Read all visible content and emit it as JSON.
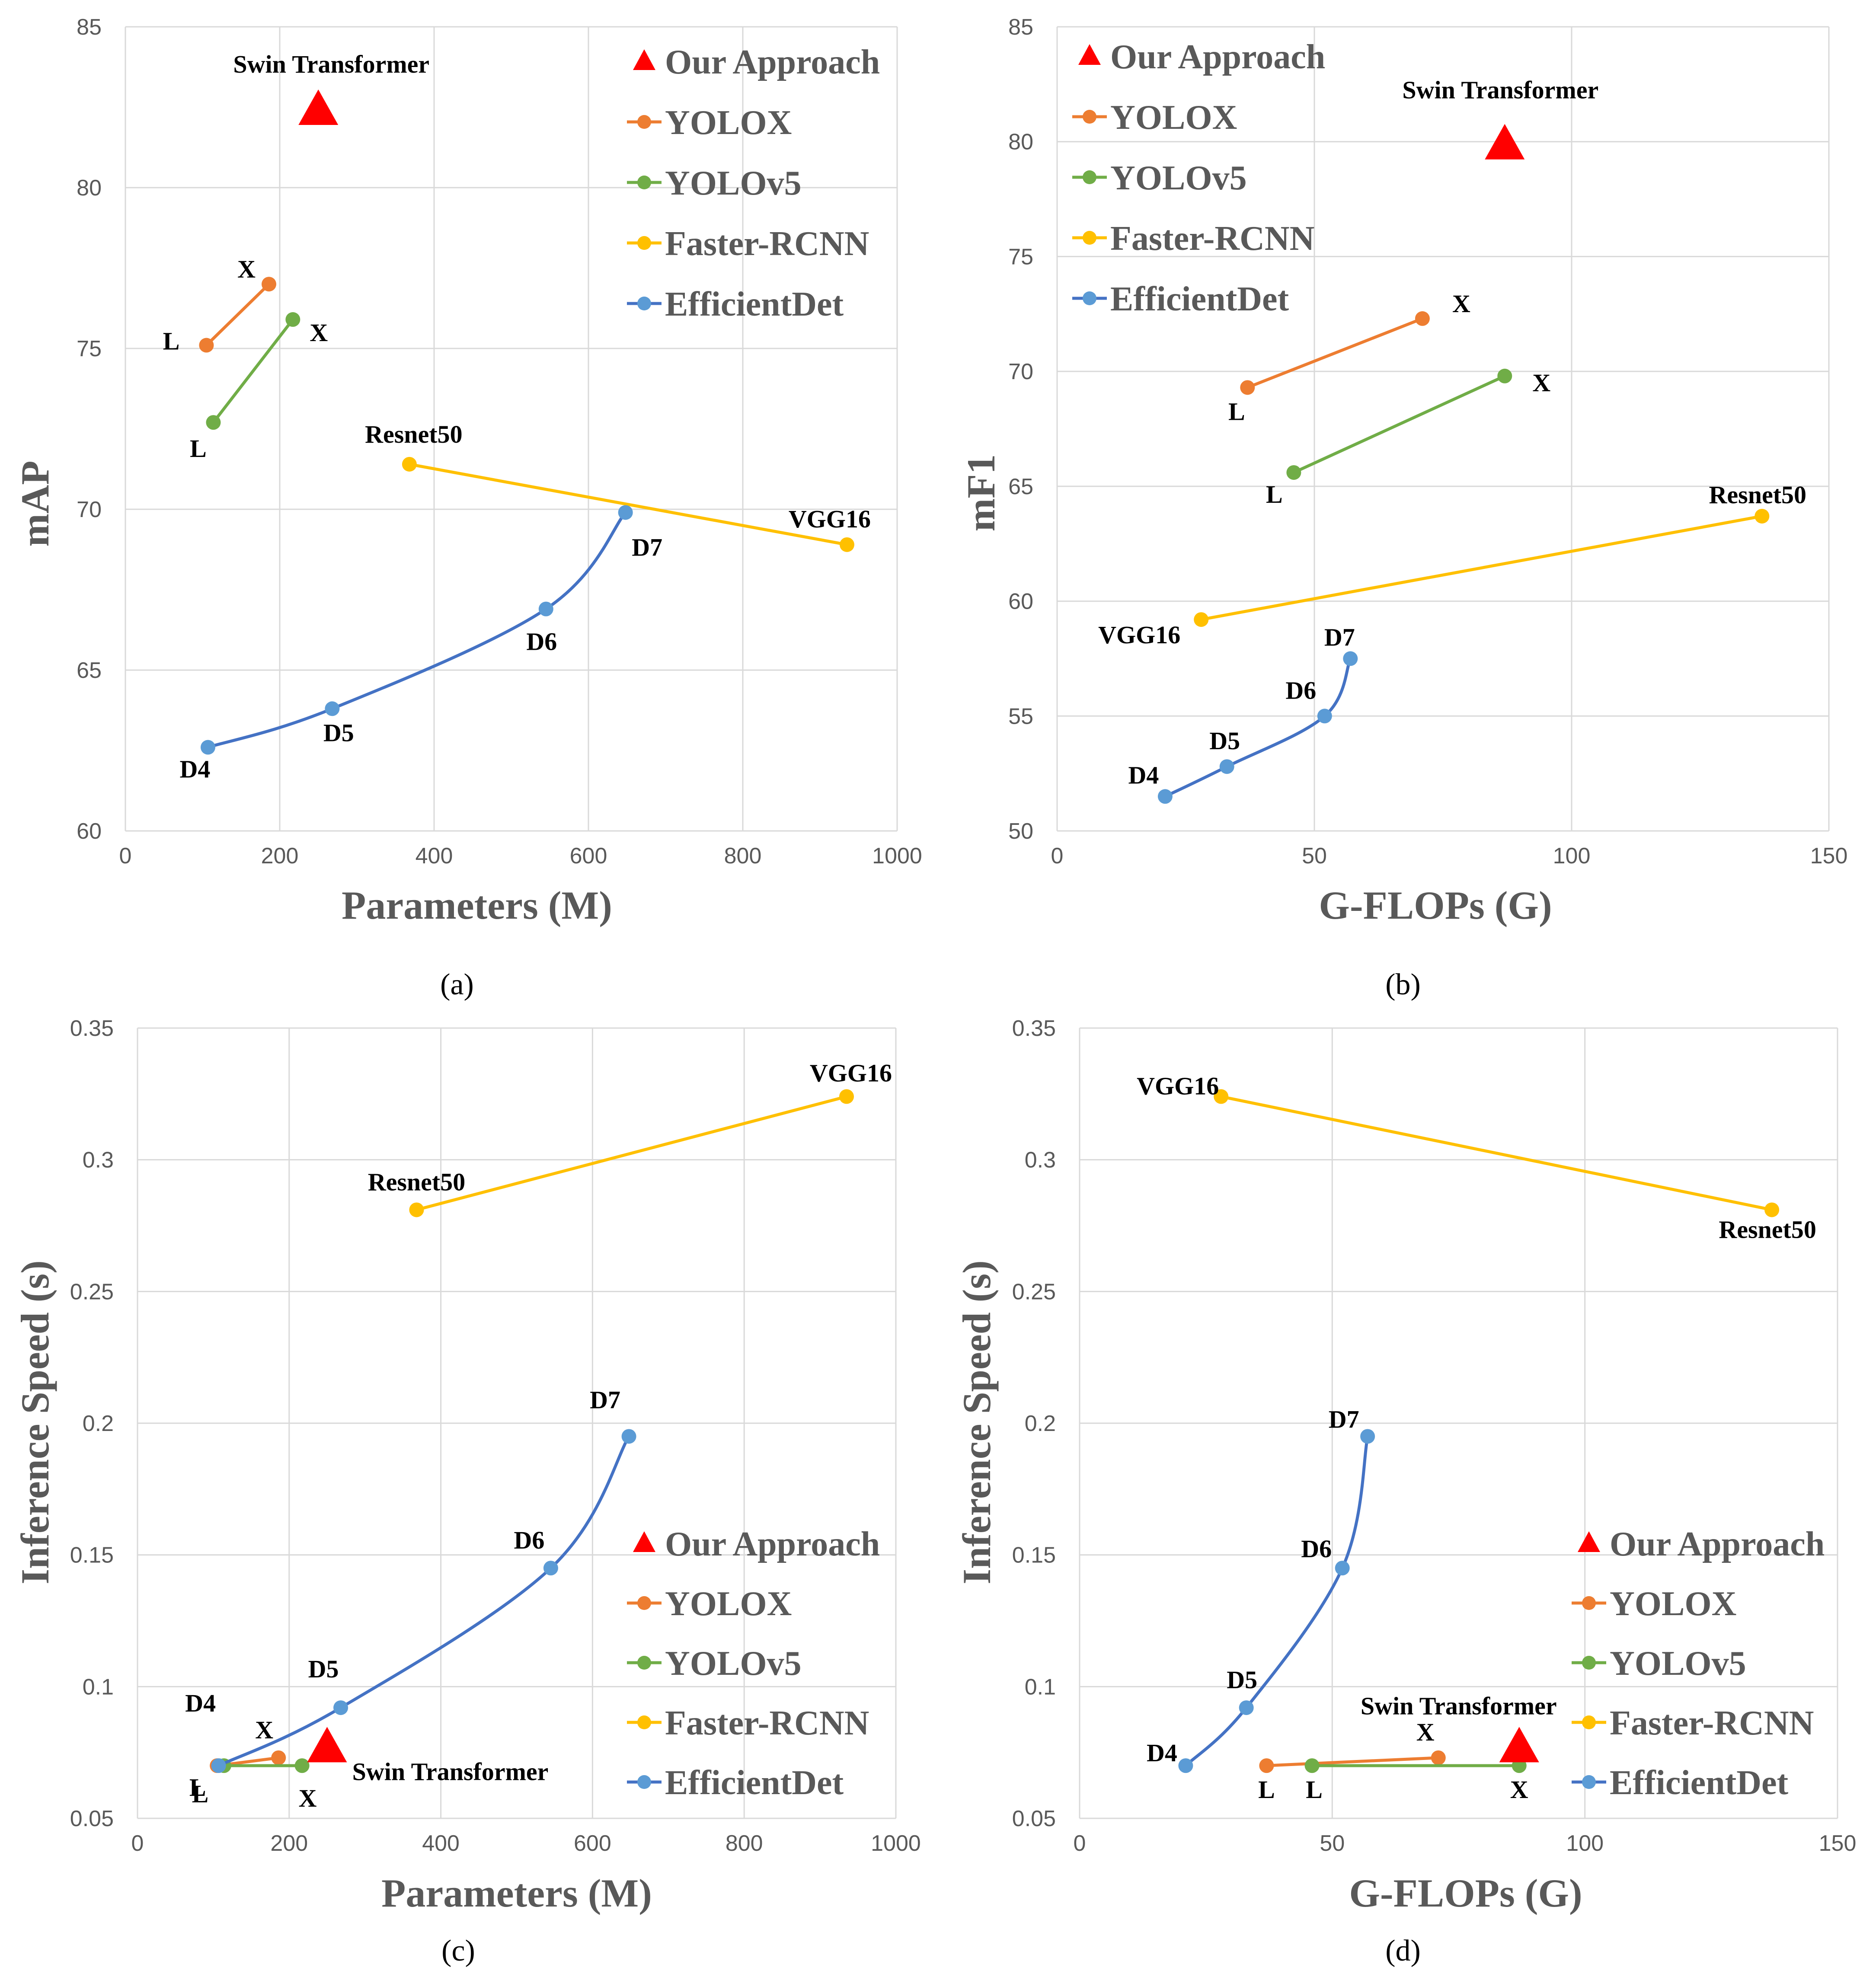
{
  "colors": {
    "our_approach": "#ff0000",
    "yolox": "#ed7d31",
    "yolov5": "#70ad47",
    "faster_rcnn": "#ffc000",
    "efficientdet": "#5b9bd5",
    "efficientdet_line": "#4472c4",
    "grid": "#d9d9d9",
    "axis_text": "#595959"
  },
  "legend": {
    "our_approach": "Our Approach",
    "yolox": "YOLOX",
    "yolov5": "YOLOv5",
    "faster_rcnn": "Faster-RCNN",
    "efficientdet": "EfficientDet"
  },
  "chart_data": [
    {
      "id": "a",
      "panel_label": "(a)",
      "type": "scatter",
      "xlabel": "Parameters (M)",
      "ylabel": "mAP",
      "xlim": [
        0,
        1000
      ],
      "ylim": [
        60,
        85
      ],
      "xticks": [
        "0",
        "200",
        "400",
        "600",
        "800",
        "1000"
      ],
      "yticks": [
        "60",
        "65",
        "70",
        "75",
        "80",
        "85"
      ],
      "legend_position": "top-right",
      "series": [
        {
          "name": "YOLOX",
          "key": "yolox",
          "points": [
            [
              105,
              75.1
            ],
            [
              186,
              77.0
            ]
          ],
          "labels": [
            "L",
            "X"
          ]
        },
        {
          "name": "YOLOv5",
          "key": "yolov5",
          "points": [
            [
              114,
              72.7
            ],
            [
              217,
              75.9
            ]
          ],
          "labels": [
            "L",
            "X"
          ]
        },
        {
          "name": "Faster-RCNN",
          "key": "faster_rcnn",
          "points": [
            [
              368,
              71.4
            ],
            [
              935,
              68.9
            ]
          ],
          "labels": [
            "Resnet50",
            "VGG16"
          ]
        },
        {
          "name": "EfficientDet",
          "key": "efficientdet",
          "points": [
            [
              107,
              62.6
            ],
            [
              268,
              63.8
            ],
            [
              545,
              66.9
            ],
            [
              648,
              69.9
            ]
          ],
          "labels": [
            "D4",
            "D5",
            "D6",
            "D7"
          ]
        },
        {
          "name": "Our Approach",
          "key": "our_approach",
          "marker": "triangle",
          "points": [
            [
              250,
              82.5
            ]
          ],
          "labels": [
            "Swin Transformer"
          ]
        }
      ]
    },
    {
      "id": "b",
      "panel_label": "(b)",
      "type": "scatter",
      "xlabel": "G-FLOPs (G)",
      "ylabel": "mF1",
      "xlim": [
        0,
        150
      ],
      "ylim": [
        50,
        85
      ],
      "xticks": [
        "0",
        "50",
        "100",
        "150"
      ],
      "yticks": [
        "50",
        "55",
        "60",
        "65",
        "70",
        "75",
        "80",
        "85"
      ],
      "legend_position": "top-left",
      "series": [
        {
          "name": "YOLOX",
          "key": "yolox",
          "points": [
            [
              37,
              69.3
            ],
            [
              71,
              72.3
            ]
          ],
          "labels": [
            "L",
            "X"
          ]
        },
        {
          "name": "YOLOv5",
          "key": "yolov5",
          "points": [
            [
              46,
              65.6
            ],
            [
              87,
              69.8
            ]
          ],
          "labels": [
            "L",
            "X"
          ]
        },
        {
          "name": "Faster-RCNN",
          "key": "faster_rcnn",
          "points": [
            [
              28,
              59.2
            ],
            [
              137,
              63.7
            ]
          ],
          "labels": [
            "VGG16",
            "Resnet50"
          ]
        },
        {
          "name": "EfficientDet",
          "key": "efficientdet",
          "points": [
            [
              21,
              51.5
            ],
            [
              33,
              52.8
            ],
            [
              52,
              55.0
            ],
            [
              57,
              57.5
            ]
          ],
          "labels": [
            "D4",
            "D5",
            "D6",
            "D7"
          ]
        },
        {
          "name": "Our Approach",
          "key": "our_approach",
          "marker": "triangle",
          "points": [
            [
              87,
              80.0
            ]
          ],
          "labels": [
            "Swin Transformer"
          ]
        }
      ]
    },
    {
      "id": "c",
      "panel_label": "(c)",
      "type": "scatter",
      "xlabel": "Parameters (M)",
      "ylabel": "Inference Speed (s)",
      "xlim": [
        0,
        1000
      ],
      "ylim": [
        0.05,
        0.35
      ],
      "xticks": [
        "0",
        "200",
        "400",
        "600",
        "800",
        "1000"
      ],
      "yticks": [
        "0.05",
        "0.1",
        "0.15",
        "0.2",
        "0.25",
        "0.3",
        "0.35"
      ],
      "legend_position": "bottom-right",
      "series": [
        {
          "name": "YOLOX",
          "key": "yolox",
          "points": [
            [
              105,
              0.07
            ],
            [
              186,
              0.073
            ]
          ],
          "labels": [
            "L",
            "X"
          ]
        },
        {
          "name": "YOLOv5",
          "key": "yolov5",
          "points": [
            [
              114,
              0.07
            ],
            [
              217,
              0.07
            ]
          ],
          "labels": [
            "L",
            "X"
          ]
        },
        {
          "name": "Faster-RCNN",
          "key": "faster_rcnn",
          "points": [
            [
              368,
              0.281
            ],
            [
              935,
              0.324
            ]
          ],
          "labels": [
            "Resnet50",
            "VGG16"
          ]
        },
        {
          "name": "EfficientDet",
          "key": "efficientdet",
          "points": [
            [
              107,
              0.07
            ],
            [
              268,
              0.092
            ],
            [
              545,
              0.145
            ],
            [
              648,
              0.195
            ]
          ],
          "labels": [
            "D4",
            "D5",
            "D6",
            "D7"
          ]
        },
        {
          "name": "Our Approach",
          "key": "our_approach",
          "marker": "triangle",
          "points": [
            [
              250,
              0.078
            ]
          ],
          "labels": [
            "Swin Transformer"
          ]
        }
      ]
    },
    {
      "id": "d",
      "panel_label": "(d)",
      "type": "scatter",
      "xlabel": "G-FLOPs (G)",
      "ylabel": "Inference Speed (s)",
      "xlim": [
        0,
        150
      ],
      "ylim": [
        0.05,
        0.35
      ],
      "xticks": [
        "0",
        "50",
        "100",
        "150"
      ],
      "yticks": [
        "0.05",
        "0.1",
        "0.15",
        "0.2",
        "0.25",
        "0.3",
        "0.35"
      ],
      "legend_position": "bottom-right",
      "series": [
        {
          "name": "YOLOX",
          "key": "yolox",
          "points": [
            [
              37,
              0.07
            ],
            [
              71,
              0.073
            ]
          ],
          "labels": [
            "L",
            "X"
          ]
        },
        {
          "name": "YOLOv5",
          "key": "yolov5",
          "points": [
            [
              46,
              0.07
            ],
            [
              87,
              0.07
            ]
          ],
          "labels": [
            "L",
            "X"
          ]
        },
        {
          "name": "Faster-RCNN",
          "key": "faster_rcnn",
          "points": [
            [
              28,
              0.324
            ],
            [
              137,
              0.281
            ]
          ],
          "labels": [
            "VGG16",
            "Resnet50"
          ]
        },
        {
          "name": "EfficientDet",
          "key": "efficientdet",
          "points": [
            [
              21,
              0.07
            ],
            [
              33,
              0.092
            ],
            [
              52,
              0.145
            ],
            [
              57,
              0.195
            ]
          ],
          "labels": [
            "D4",
            "D5",
            "D6",
            "D7"
          ]
        },
        {
          "name": "Our Approach",
          "key": "our_approach",
          "marker": "triangle",
          "points": [
            [
              87,
              0.078
            ]
          ],
          "labels": [
            "Swin Transformer"
          ]
        }
      ]
    }
  ]
}
